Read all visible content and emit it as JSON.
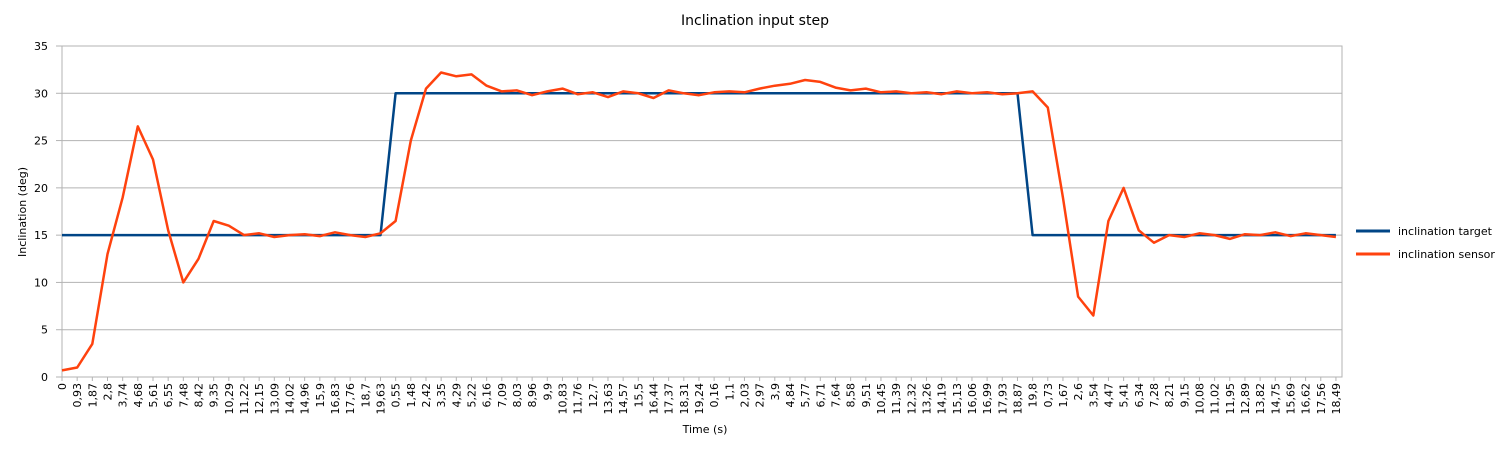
{
  "chart_data": {
    "type": "line",
    "title": "Inclination  input step",
    "x_label": "Time (s)",
    "y_label": "Inclination (deg)",
    "categories": [
      "0",
      "0,93",
      "1,87",
      "2,8",
      "3,74",
      "4,68",
      "5,61",
      "6,55",
      "7,48",
      "8,42",
      "9,35",
      "10,29",
      "11,22",
      "12,15",
      "13,09",
      "14,02",
      "14,96",
      "15,9",
      "16,83",
      "17,76",
      "18,7",
      "19,63",
      "0,55",
      "1,48",
      "2,42",
      "3,35",
      "4,29",
      "5,22",
      "6,16",
      "7,09",
      "8,03",
      "8,96",
      "9,9",
      "10,83",
      "11,76",
      "12,7",
      "13,63",
      "14,57",
      "15,5",
      "16,44",
      "17,37",
      "18,31",
      "19,24",
      "0,16",
      "1,1",
      "2,03",
      "2,97",
      "3,9",
      "4,84",
      "5,77",
      "6,71",
      "7,64",
      "8,58",
      "9,51",
      "10,45",
      "11,39",
      "12,32",
      "13,26",
      "14,19",
      "15,13",
      "16,06",
      "16,99",
      "17,93",
      "18,87",
      "19,8",
      "0,73",
      "1,67",
      "2,6",
      "3,54",
      "4,47",
      "5,41",
      "6,34",
      "7,28",
      "8,21",
      "9,15",
      "10,08",
      "11,02",
      "11,95",
      "12,89",
      "13,82",
      "14,75",
      "15,69",
      "16,62",
      "17,56",
      "18,49"
    ],
    "series": [
      {
        "name": "inclination target",
        "color": "#004586",
        "values": [
          15,
          15,
          15,
          15,
          15,
          15,
          15,
          15,
          15,
          15,
          15,
          15,
          15,
          15,
          15,
          15,
          15,
          15,
          15,
          15,
          15,
          15,
          30,
          30,
          30,
          30,
          30,
          30,
          30,
          30,
          30,
          30,
          30,
          30,
          30,
          30,
          30,
          30,
          30,
          30,
          30,
          30,
          30,
          30,
          30,
          30,
          30,
          30,
          30,
          30,
          30,
          30,
          30,
          30,
          30,
          30,
          30,
          30,
          30,
          30,
          30,
          30,
          30,
          30,
          15,
          15,
          15,
          15,
          15,
          15,
          15,
          15,
          15,
          15,
          15,
          15,
          15,
          15,
          15,
          15,
          15,
          15,
          15,
          15,
          15
        ]
      },
      {
        "name": "inclination sensor",
        "color": "#ff420e",
        "values": [
          0.7,
          1.0,
          3.5,
          13,
          19,
          26.5,
          23,
          15.5,
          10,
          12.5,
          16.5,
          16,
          15,
          15.2,
          14.8,
          15.0,
          15.1,
          14.9,
          15.3,
          15.0,
          14.8,
          15.2,
          16.5,
          25,
          30.5,
          32.2,
          31.8,
          32,
          30.8,
          30.2,
          30.3,
          29.8,
          30.2,
          30.5,
          29.9,
          30.1,
          29.6,
          30.2,
          30.0,
          29.5,
          30.3,
          30.0,
          29.8,
          30.1,
          30.2,
          30.1,
          30.5,
          30.8,
          31.0,
          31.4,
          31.2,
          30.6,
          30.3,
          30.5,
          30.1,
          30.2,
          30.0,
          30.1,
          29.9,
          30.2,
          30.0,
          30.1,
          29.9,
          30.0,
          30.2,
          28.5,
          19,
          8.5,
          6.5,
          16.5,
          20,
          15.5,
          14.2,
          15.0,
          14.8,
          15.2,
          15.0,
          14.6,
          15.1,
          15.0,
          15.3,
          14.9,
          15.2,
          15.0,
          14.8
        ]
      }
    ],
    "ylim": [
      0,
      35
    ],
    "yticks": [
      0,
      5,
      10,
      15,
      20,
      25,
      30,
      35
    ],
    "grid": true,
    "legend": "right"
  }
}
